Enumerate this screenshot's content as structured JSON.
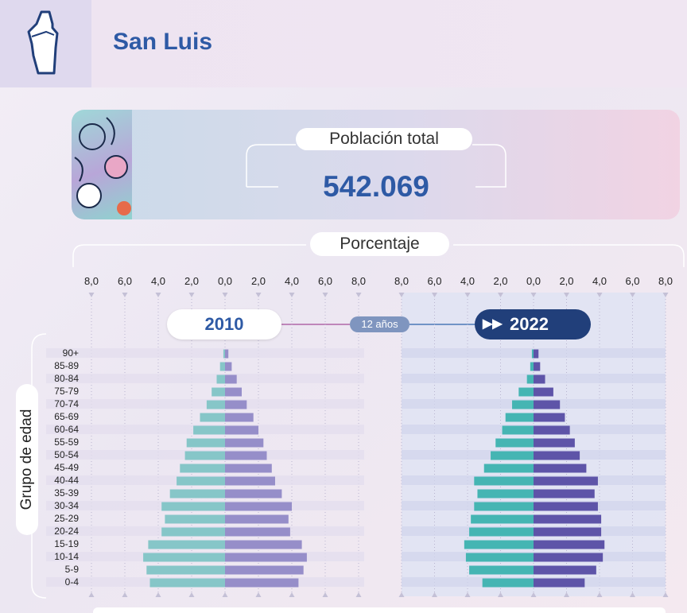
{
  "header": {
    "title": "San Luis"
  },
  "population": {
    "label": "Población total",
    "value": "542.069"
  },
  "axis": {
    "top_label": "Porcentaje",
    "tick_labels": [
      "8,0",
      "6,0",
      "4,0",
      "2,0",
      "0,0",
      "2,0",
      "4,0",
      "6,0",
      "8,0"
    ]
  },
  "years": {
    "left": "2010",
    "right": "2022",
    "gap": "12 años"
  },
  "ylabel": "Grupo de edad",
  "colors": {
    "male_2010": "#86c6c8",
    "female_2010": "#968ec9",
    "male_2022": "#45b5b3",
    "female_2022": "#5e54a8",
    "title": "#2e5aa5",
    "pill_dark": "#213f7a"
  },
  "chart_data": {
    "type": "bar",
    "orientation": "horizontal",
    "categories": [
      "90+",
      "85-89",
      "80-84",
      "75-79",
      "70-74",
      "65-69",
      "60-64",
      "55-59",
      "50-54",
      "45-49",
      "40-44",
      "35-39",
      "30-34",
      "25-29",
      "20-24",
      "15-19",
      "10-14",
      "5-9",
      "0-4"
    ],
    "xlim": [
      -8,
      8
    ],
    "ylabel": "Grupo de edad",
    "panels": [
      {
        "year": "2010",
        "series": [
          {
            "values": [
              -0.1,
              -0.3,
              -0.5,
              -0.8,
              -1.1,
              -1.5,
              -1.9,
              -2.3,
              -2.4,
              -2.7,
              -2.9,
              -3.3,
              -3.8,
              -3.6,
              -3.8,
              -4.6,
              -4.9,
              -4.7,
              -4.5
            ]
          },
          {
            "values": [
              0.2,
              0.4,
              0.7,
              1.0,
              1.3,
              1.7,
              2.0,
              2.3,
              2.5,
              2.8,
              3.0,
              3.4,
              4.0,
              3.8,
              3.9,
              4.6,
              4.9,
              4.7,
              4.4
            ]
          }
        ]
      },
      {
        "year": "2022",
        "series": [
          {
            "values": [
              -0.1,
              -0.2,
              -0.4,
              -0.9,
              -1.3,
              -1.7,
              -1.9,
              -2.3,
              -2.6,
              -3.0,
              -3.6,
              -3.4,
              -3.6,
              -3.8,
              -3.9,
              -4.2,
              -4.1,
              -3.9,
              -3.1
            ]
          },
          {
            "values": [
              0.3,
              0.4,
              0.7,
              1.2,
              1.6,
              1.9,
              2.2,
              2.5,
              2.8,
              3.2,
              3.9,
              3.7,
              3.9,
              4.1,
              4.1,
              4.3,
              4.2,
              3.8,
              3.1
            ]
          }
        ]
      }
    ]
  }
}
